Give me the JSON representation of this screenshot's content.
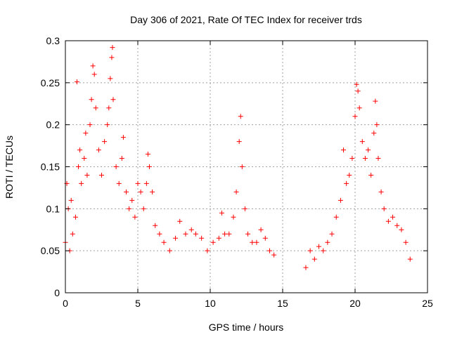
{
  "chart_data": {
    "type": "scatter",
    "title": "Day 306 of 2021, Rate Of TEC Index for receiver trds",
    "xlabel": "GPS time / hours",
    "ylabel": "ROTI / TECUs",
    "xlim": [
      0,
      25
    ],
    "ylim": [
      0,
      0.3
    ],
    "x_ticks": [
      0,
      5,
      10,
      15,
      20,
      25
    ],
    "y_ticks": [
      0,
      0.05,
      0.1,
      0.15,
      0.2,
      0.25,
      0.3
    ],
    "x_tick_labels": [
      "0",
      "5",
      "10",
      "15",
      "20",
      "25"
    ],
    "y_tick_labels": [
      "0",
      "0.05",
      "0.1",
      "0.15",
      "0.2",
      "0.25",
      "0.3"
    ],
    "grid": true,
    "marker": "+",
    "marker_color": "#ff0000",
    "data_gap_hours": [
      14.7,
      16.6
    ],
    "series": [
      {
        "points": [
          [
            0.0,
            0.06
          ],
          [
            0.1,
            0.13
          ],
          [
            0.2,
            0.1
          ],
          [
            0.3,
            0.05
          ],
          [
            0.4,
            0.11
          ],
          [
            0.5,
            0.07
          ],
          [
            0.7,
            0.09
          ],
          [
            0.8,
            0.251
          ],
          [
            0.9,
            0.15
          ],
          [
            1.0,
            0.17
          ],
          [
            1.1,
            0.13
          ],
          [
            1.3,
            0.16
          ],
          [
            1.4,
            0.19
          ],
          [
            1.5,
            0.14
          ],
          [
            1.7,
            0.2
          ],
          [
            1.8,
            0.23
          ],
          [
            1.9,
            0.27
          ],
          [
            2.0,
            0.26
          ],
          [
            2.1,
            0.22
          ],
          [
            2.3,
            0.17
          ],
          [
            2.5,
            0.14
          ],
          [
            2.7,
            0.18
          ],
          [
            2.9,
            0.2
          ],
          [
            3.0,
            0.22
          ],
          [
            3.1,
            0.255
          ],
          [
            3.2,
            0.28
          ],
          [
            3.25,
            0.292
          ],
          [
            3.3,
            0.23
          ],
          [
            3.5,
            0.15
          ],
          [
            3.7,
            0.13
          ],
          [
            3.9,
            0.16
          ],
          [
            4.0,
            0.185
          ],
          [
            4.2,
            0.12
          ],
          [
            4.4,
            0.1
          ],
          [
            4.6,
            0.11
          ],
          [
            4.8,
            0.09
          ],
          [
            5.0,
            0.13
          ],
          [
            5.2,
            0.12
          ],
          [
            5.4,
            0.1
          ],
          [
            5.6,
            0.13
          ],
          [
            5.7,
            0.165
          ],
          [
            5.8,
            0.15
          ],
          [
            6.0,
            0.12
          ],
          [
            6.2,
            0.08
          ],
          [
            6.5,
            0.07
          ],
          [
            6.8,
            0.06
          ],
          [
            7.2,
            0.05
          ],
          [
            7.6,
            0.065
          ],
          [
            7.9,
            0.085
          ],
          [
            8.3,
            0.07
          ],
          [
            8.7,
            0.075
          ],
          [
            9.0,
            0.07
          ],
          [
            9.4,
            0.065
          ],
          [
            9.8,
            0.05
          ],
          [
            10.2,
            0.06
          ],
          [
            10.6,
            0.065
          ],
          [
            10.8,
            0.095
          ],
          [
            11.0,
            0.07
          ],
          [
            11.3,
            0.07
          ],
          [
            11.6,
            0.09
          ],
          [
            11.8,
            0.12
          ],
          [
            12.0,
            0.18
          ],
          [
            12.1,
            0.21
          ],
          [
            12.2,
            0.15
          ],
          [
            12.4,
            0.1
          ],
          [
            12.6,
            0.07
          ],
          [
            12.9,
            0.06
          ],
          [
            13.2,
            0.06
          ],
          [
            13.5,
            0.075
          ],
          [
            13.8,
            0.065
          ],
          [
            14.1,
            0.05
          ],
          [
            14.4,
            0.045
          ],
          [
            16.6,
            0.03
          ],
          [
            16.9,
            0.05
          ],
          [
            17.2,
            0.04
          ],
          [
            17.5,
            0.055
          ],
          [
            17.8,
            0.05
          ],
          [
            18.1,
            0.06
          ],
          [
            18.4,
            0.07
          ],
          [
            18.7,
            0.09
          ],
          [
            19.0,
            0.11
          ],
          [
            19.2,
            0.17
          ],
          [
            19.4,
            0.13
          ],
          [
            19.6,
            0.14
          ],
          [
            19.8,
            0.16
          ],
          [
            20.0,
            0.21
          ],
          [
            20.1,
            0.248
          ],
          [
            20.2,
            0.24
          ],
          [
            20.3,
            0.22
          ],
          [
            20.5,
            0.18
          ],
          [
            20.7,
            0.16
          ],
          [
            20.9,
            0.17
          ],
          [
            21.1,
            0.14
          ],
          [
            21.3,
            0.19
          ],
          [
            21.4,
            0.228
          ],
          [
            21.5,
            0.2
          ],
          [
            21.6,
            0.16
          ],
          [
            21.8,
            0.12
          ],
          [
            22.0,
            0.1
          ],
          [
            22.3,
            0.085
          ],
          [
            22.6,
            0.09
          ],
          [
            22.9,
            0.08
          ],
          [
            23.2,
            0.075
          ],
          [
            23.5,
            0.06
          ],
          [
            23.8,
            0.04
          ]
        ]
      }
    ]
  }
}
